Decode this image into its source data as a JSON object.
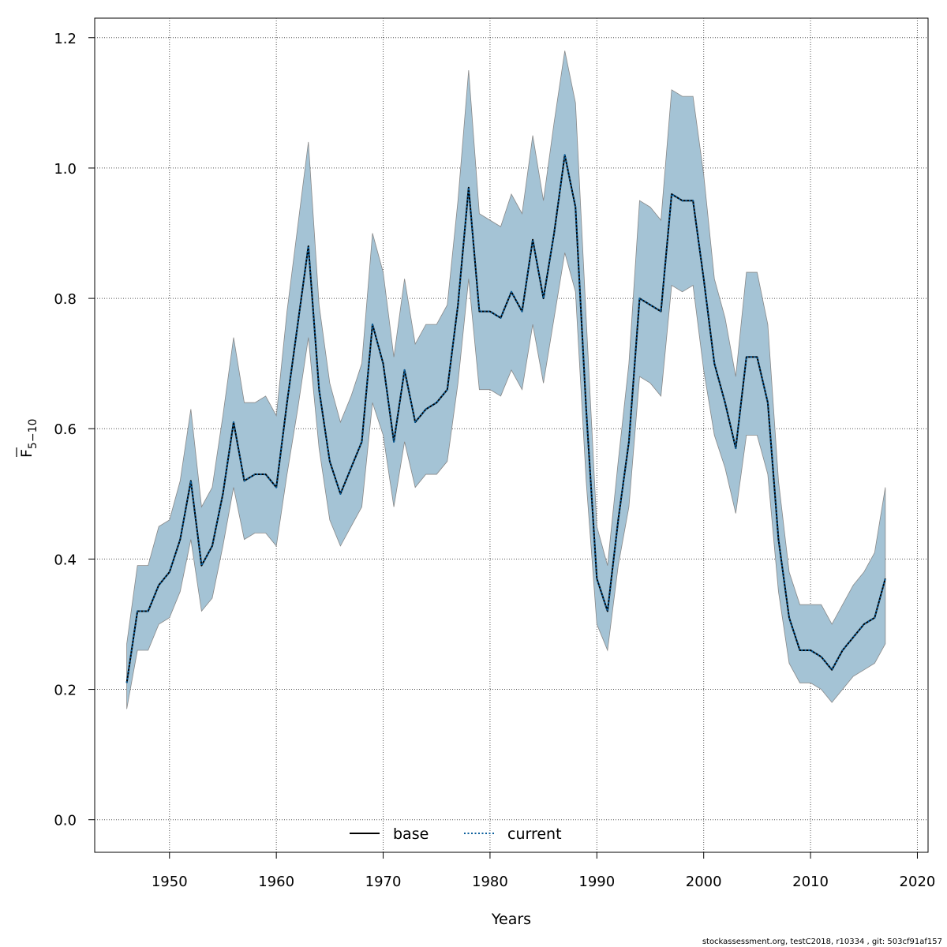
{
  "chart_data": {
    "type": "line",
    "xlabel": "Years",
    "ylabel": {
      "main": "F",
      "sub": "5−10"
    },
    "xlim": [
      1943,
      2021
    ],
    "ylim": [
      -0.05,
      1.23
    ],
    "xticks": [
      1950,
      1960,
      1970,
      1980,
      1990,
      2000,
      2010,
      2020
    ],
    "yticks": [
      0.0,
      0.2,
      0.4,
      0.6,
      0.8,
      1.0,
      1.2
    ],
    "xtick_labels": [
      "1950",
      "1960",
      "1970",
      "1980",
      "1990",
      "2000",
      "2010",
      "2020"
    ],
    "ytick_labels": [
      "0.0",
      "0.2",
      "0.4",
      "0.6",
      "0.8",
      "1.0",
      "1.2"
    ],
    "grid": true,
    "legend_position": "bottom-center",
    "x": [
      1946,
      1947,
      1948,
      1949,
      1950,
      1951,
      1952,
      1953,
      1954,
      1955,
      1956,
      1957,
      1958,
      1959,
      1960,
      1961,
      1962,
      1963,
      1964,
      1965,
      1966,
      1967,
      1968,
      1969,
      1970,
      1971,
      1972,
      1973,
      1974,
      1975,
      1976,
      1977,
      1978,
      1979,
      1980,
      1981,
      1982,
      1983,
      1984,
      1985,
      1986,
      1987,
      1988,
      1989,
      1990,
      1991,
      1992,
      1993,
      1994,
      1995,
      1996,
      1997,
      1998,
      1999,
      2000,
      2001,
      2002,
      2003,
      2004,
      2005,
      2006,
      2007,
      2008,
      2009,
      2010,
      2011,
      2012,
      2013,
      2014,
      2015,
      2016,
      2017
    ],
    "band": {
      "upper": [
        0.27,
        0.39,
        0.39,
        0.45,
        0.46,
        0.52,
        0.63,
        0.48,
        0.51,
        0.62,
        0.74,
        0.64,
        0.64,
        0.65,
        0.62,
        0.78,
        0.91,
        1.04,
        0.79,
        0.67,
        0.61,
        0.65,
        0.7,
        0.9,
        0.84,
        0.71,
        0.83,
        0.73,
        0.76,
        0.76,
        0.79,
        0.95,
        1.15,
        0.93,
        0.92,
        0.91,
        0.96,
        0.93,
        1.05,
        0.95,
        1.07,
        1.18,
        1.1,
        0.77,
        0.45,
        0.39,
        0.55,
        0.7,
        0.95,
        0.94,
        0.92,
        1.12,
        1.11,
        1.11,
        0.99,
        0.83,
        0.77,
        0.68,
        0.84,
        0.84,
        0.76,
        0.52,
        0.38,
        0.33,
        0.33,
        0.33,
        0.3,
        0.33,
        0.36,
        0.38,
        0.41,
        0.51
      ],
      "lower": [
        0.17,
        0.26,
        0.26,
        0.3,
        0.31,
        0.35,
        0.43,
        0.32,
        0.34,
        0.42,
        0.51,
        0.43,
        0.44,
        0.44,
        0.42,
        0.53,
        0.63,
        0.74,
        0.57,
        0.46,
        0.42,
        0.45,
        0.48,
        0.64,
        0.59,
        0.48,
        0.58,
        0.51,
        0.53,
        0.53,
        0.55,
        0.67,
        0.83,
        0.66,
        0.66,
        0.65,
        0.69,
        0.66,
        0.76,
        0.67,
        0.77,
        0.87,
        0.81,
        0.52,
        0.3,
        0.26,
        0.39,
        0.48,
        0.68,
        0.67,
        0.65,
        0.82,
        0.81,
        0.82,
        0.69,
        0.59,
        0.54,
        0.47,
        0.59,
        0.59,
        0.53,
        0.35,
        0.24,
        0.21,
        0.21,
        0.2,
        0.18,
        0.2,
        0.22,
        0.23,
        0.24,
        0.27
      ]
    },
    "series": [
      {
        "name": "base",
        "style": "solid",
        "color": "#000000",
        "values": [
          0.21,
          0.32,
          0.32,
          0.36,
          0.38,
          0.43,
          0.52,
          0.39,
          0.42,
          0.5,
          0.61,
          0.52,
          0.53,
          0.53,
          0.51,
          0.64,
          0.76,
          0.88,
          0.66,
          0.55,
          0.5,
          0.54,
          0.58,
          0.76,
          0.7,
          0.58,
          0.69,
          0.61,
          0.63,
          0.64,
          0.66,
          0.79,
          0.97,
          0.78,
          0.78,
          0.77,
          0.81,
          0.78,
          0.89,
          0.8,
          0.9,
          1.02,
          0.94,
          0.63,
          0.37,
          0.32,
          0.46,
          0.58,
          0.8,
          0.79,
          0.78,
          0.96,
          0.95,
          0.95,
          0.83,
          0.7,
          0.64,
          0.57,
          0.71,
          0.71,
          0.64,
          0.43,
          0.31,
          0.26,
          0.26,
          0.25,
          0.23,
          0.26,
          0.28,
          0.3,
          0.31,
          0.37
        ]
      },
      {
        "name": "current",
        "style": "dotted",
        "color": "#0b5f9c",
        "values": [
          0.21,
          0.32,
          0.32,
          0.36,
          0.38,
          0.43,
          0.52,
          0.39,
          0.42,
          0.5,
          0.61,
          0.52,
          0.53,
          0.53,
          0.51,
          0.64,
          0.76,
          0.88,
          0.66,
          0.55,
          0.5,
          0.54,
          0.58,
          0.76,
          0.7,
          0.58,
          0.69,
          0.61,
          0.63,
          0.64,
          0.66,
          0.79,
          0.97,
          0.78,
          0.78,
          0.77,
          0.81,
          0.78,
          0.89,
          0.8,
          0.9,
          1.02,
          0.94,
          0.63,
          0.37,
          0.32,
          0.46,
          0.58,
          0.8,
          0.79,
          0.78,
          0.96,
          0.95,
          0.95,
          0.83,
          0.7,
          0.64,
          0.57,
          0.71,
          0.71,
          0.64,
          0.43,
          0.31,
          0.26,
          0.26,
          0.25,
          0.23,
          0.26,
          0.28,
          0.3,
          0.31,
          0.37
        ]
      }
    ],
    "colors": {
      "band_fill": "#a4c3d5",
      "band_stroke": "#888888",
      "grid": "#555555",
      "axis": "#000000"
    }
  },
  "footer_text": "stockassessment.org, testC2018, r10334 , git: 503cf91af157"
}
